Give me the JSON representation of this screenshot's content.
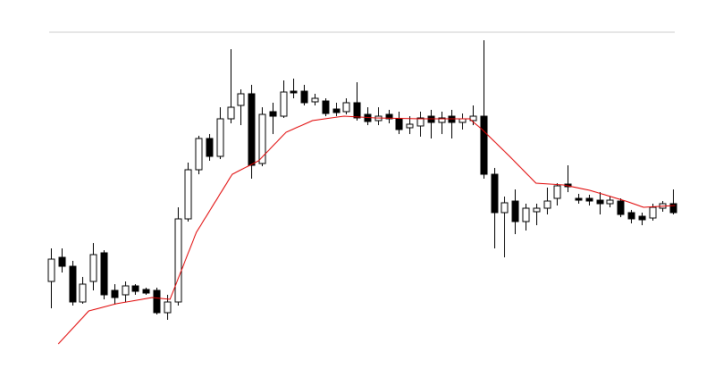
{
  "chart_data": {
    "type": "candlestick",
    "categories": [
      null,
      null,
      null,
      null,
      null,
      null,
      null,
      null,
      null,
      null,
      null,
      null,
      null,
      null,
      null,
      null,
      null,
      null,
      null,
      null,
      null,
      null,
      null,
      null,
      null,
      null,
      null,
      null,
      null,
      null,
      null,
      null,
      null,
      null,
      null,
      null,
      null,
      null,
      null,
      null,
      null,
      null,
      null,
      null,
      null,
      null,
      null,
      null,
      null,
      null,
      null,
      null,
      null,
      null,
      null,
      null,
      null,
      null,
      null,
      null
    ],
    "xlim": [
      -0.5,
      59.5
    ],
    "ylim": [
      0,
      413
    ],
    "series": [
      {
        "type": "candlestick",
        "up_color": "#ffffff",
        "down_color": "#000000",
        "open": [
          98,
          125,
          115,
          75,
          98,
          130,
          88,
          83,
          93,
          89,
          88,
          63,
          75,
          168,
          223,
          258,
          238,
          280,
          295,
          308,
          230,
          288,
          283,
          311,
          311,
          299,
          300,
          291,
          288,
          298,
          285,
          278,
          285,
          280,
          270,
          272,
          283,
          276,
          283,
          276,
          278,
          283,
          218,
          175,
          188,
          165,
          176,
          180,
          191,
          207,
          191,
          191,
          189,
          185,
          188,
          175,
          171,
          169,
          180,
          185
        ],
        "high": [
          135,
          135,
          121,
          103,
          141,
          133,
          95,
          98,
          95,
          91,
          91,
          83,
          181,
          231,
          261,
          263,
          293,
          358,
          313,
          318,
          293,
          298,
          323,
          325,
          318,
          308,
          303,
          298,
          303,
          321,
          293,
          293,
          290,
          288,
          283,
          288,
          290,
          288,
          290,
          286,
          295,
          368,
          225,
          193,
          201,
          185,
          185,
          203,
          208,
          228,
          196,
          195,
          198,
          193,
          191,
          178,
          175,
          185,
          188,
          201
        ],
        "low": [
          68,
          108,
          71,
          73,
          88,
          78,
          73,
          75,
          83,
          83,
          61,
          55,
          71,
          165,
          218,
          233,
          235,
          275,
          273,
          213,
          227,
          263,
          281,
          303,
          295,
          295,
          283,
          283,
          285,
          278,
          273,
          273,
          275,
          263,
          263,
          260,
          258,
          263,
          258,
          268,
          273,
          213,
          135,
          125,
          151,
          155,
          161,
          173,
          183,
          198,
          185,
          183,
          173,
          181,
          170,
          163,
          161,
          166,
          176,
          173
        ],
        "close": [
          123,
          115,
          75,
          95,
          128,
          83,
          80,
          93,
          87,
          85,
          63,
          75,
          168,
          223,
          258,
          238,
          280,
          293,
          308,
          228,
          285,
          283,
          310,
          309,
          298,
          303,
          286,
          287,
          298,
          281,
          277,
          283,
          280,
          268,
          274,
          281,
          276,
          281,
          276,
          280,
          283,
          218,
          175,
          186,
          165,
          180,
          180,
          188,
          205,
          204,
          189,
          188,
          185,
          189,
          173,
          168,
          167,
          181,
          185,
          175
        ]
      },
      {
        "type": "line",
        "color": "#e00000",
        "x": [
          0.7,
          3.6,
          6.2,
          9.6,
          11.3,
          13.8,
          17.2,
          19.7,
          22.3,
          24.8,
          27.8,
          30.8,
          35,
          39.7,
          40.9,
          43.5,
          46,
          48.6,
          51.1,
          54.5,
          56.2,
          59.2
        ],
        "values": [
          28,
          65,
          73,
          80,
          78,
          153,
          218,
          233,
          265,
          278,
          283,
          281,
          280,
          280,
          268,
          238,
          208,
          206,
          200,
          188,
          181,
          183
        ]
      }
    ]
  }
}
